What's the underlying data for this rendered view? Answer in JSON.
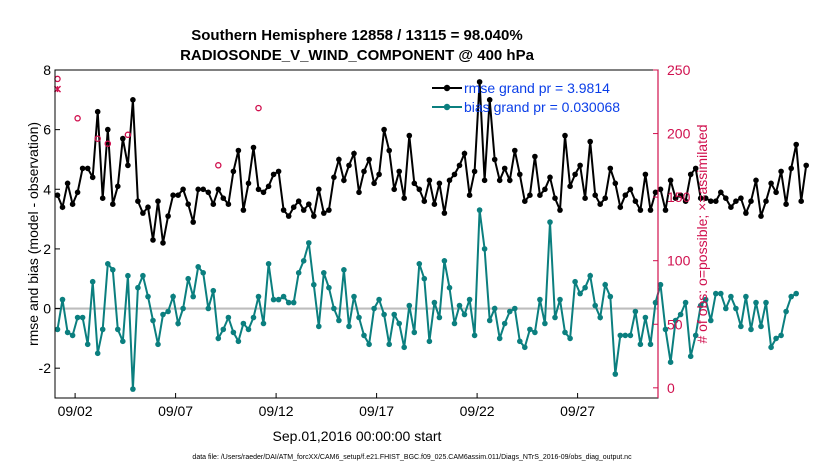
{
  "chart_data": {
    "type": "line",
    "title": [
      "Southern Hemisphere 12858 / 13115 = 98.040%",
      "RADIOSONDE_V_WIND_COMPONENT @ 400 hPa"
    ],
    "xlabel": "Sep.01,2016 00:00:00 start",
    "ylabel_left": "rmse and bias (model - observation)",
    "ylabel_right": "# of obs: o=possible; ×=assimilated",
    "ylim_left": [
      -3,
      8
    ],
    "yticks_left": [
      "-2",
      "0",
      "2",
      "4",
      "6",
      "8"
    ],
    "ylim_right": [
      -8,
      250
    ],
    "yticks_right": [
      "0",
      "50",
      "100",
      "150",
      "200",
      "250"
    ],
    "xlim_days": [
      0.5,
      30.5
    ],
    "xticks": [
      {
        "day": 1.5,
        "label": "09/02"
      },
      {
        "day": 6.5,
        "label": "09/07"
      },
      {
        "day": 11.5,
        "label": "09/12"
      },
      {
        "day": 16.5,
        "label": "09/17"
      },
      {
        "day": 21.5,
        "label": "09/22"
      },
      {
        "day": 26.5,
        "label": "09/27"
      }
    ],
    "step_days": 0.25,
    "start_day": 0.625,
    "zero_line": 0,
    "legend": [
      {
        "label": "rmse grand pr = 3.9814",
        "color": "#000000"
      },
      {
        "label": "bias grand pr = 0.030068",
        "color": "#0b7f7f"
      }
    ],
    "footer": "data file: /Users/raeder/DAI/ATM_forcXX/CAM6_setup/f.e21.FHIST_BGC.f09_025.CAM6assim.011/Diags_NTrS_2016-09/obs_diag_output.nc",
    "series": [
      {
        "name": "rmse",
        "color": "#000000",
        "values": [
          3.8,
          3.4,
          4.2,
          3.5,
          3.9,
          4.7,
          4.7,
          4.4,
          6.6,
          3.7,
          6.0,
          3.5,
          4.1,
          5.7,
          4.8,
          7.0,
          3.6,
          3.2,
          3.4,
          2.3,
          3.6,
          2.2,
          3.1,
          3.8,
          3.8,
          4.0,
          3.5,
          2.9,
          4.0,
          4.0,
          3.9,
          3.5,
          4.0,
          3.7,
          3.5,
          4.6,
          5.3,
          3.3,
          4.2,
          5.4,
          4.0,
          3.9,
          4.1,
          4.5,
          4.6,
          3.3,
          3.1,
          3.4,
          3.6,
          3.3,
          3.5,
          3.1,
          4.0,
          3.2,
          3.3,
          4.4,
          5.0,
          4.3,
          4.8,
          5.2,
          3.9,
          4.6,
          5.0,
          4.2,
          4.5,
          6.0,
          5.3,
          4.0,
          4.6,
          3.7,
          5.8,
          4.2,
          4.0,
          3.6,
          4.3,
          3.5,
          4.2,
          3.2,
          4.3,
          4.5,
          4.8,
          5.2,
          3.8,
          4.6,
          7.6,
          4.3,
          7.0,
          5.0,
          4.3,
          4.7,
          4.3,
          5.3,
          4.5,
          3.6,
          3.8,
          5.1,
          3.8,
          4.0,
          4.4,
          3.7,
          3.3,
          5.8,
          4.1,
          4.5,
          4.8,
          3.7,
          5.6,
          3.8,
          3.5,
          3.7,
          4.7,
          4.2,
          3.4,
          3.8,
          4.0,
          3.6,
          3.3,
          4.5,
          3.3,
          3.9,
          4.0,
          3.3,
          4.3,
          3.7,
          3.8,
          3.6,
          4.5,
          4.7,
          3.7,
          3.7,
          3.6,
          3.6,
          3.9,
          3.7,
          3.4,
          3.6,
          3.7,
          3.2,
          3.6,
          4.3,
          3.1,
          3.6,
          4.2,
          3.9,
          4.6,
          3.5,
          4.7,
          5.5,
          3.6,
          4.8
        ]
      },
      {
        "name": "bias",
        "color": "#0b7f7f",
        "values": [
          -0.7,
          0.3,
          -0.8,
          -0.9,
          -0.3,
          -0.3,
          -1.2,
          0.9,
          -1.5,
          -0.7,
          1.5,
          1.3,
          -0.7,
          -1.1,
          1.1,
          -2.7,
          0.7,
          1.1,
          0.4,
          -0.4,
          -1.2,
          -0.2,
          -0.1,
          0.4,
          -0.5,
          0.0,
          1.0,
          0.4,
          1.4,
          1.2,
          0.0,
          0.6,
          -1.0,
          -0.7,
          -0.3,
          -0.8,
          -1.1,
          -0.5,
          -0.7,
          -0.3,
          0.4,
          -0.5,
          1.5,
          0.3,
          0.3,
          0.4,
          0.2,
          0.2,
          1.2,
          1.6,
          2.2,
          0.8,
          -0.6,
          1.2,
          0.7,
          0.0,
          -0.4,
          1.3,
          -0.6,
          0.4,
          -0.3,
          -0.9,
          -1.2,
          0.0,
          0.3,
          -0.2,
          -1.2,
          -0.2,
          -0.5,
          -1.3,
          0.1,
          -0.8,
          1.5,
          1.0,
          -1.1,
          0.2,
          -0.3,
          1.6,
          0.7,
          -0.5,
          0.1,
          -0.2,
          0.3,
          -0.9,
          3.3,
          2.0,
          -0.4,
          0.0,
          -1.0,
          -0.5,
          -0.1,
          0.0,
          -1.1,
          -1.3,
          -0.7,
          -0.8,
          0.3,
          -0.5,
          2.9,
          -0.3,
          0.3,
          -0.8,
          -1.0,
          0.9,
          0.5,
          0.7,
          1.1,
          0.1,
          -0.3,
          0.8,
          0.4,
          -2.2,
          -0.9,
          -0.9,
          -0.9,
          -0.1,
          -1.2,
          -0.3,
          -1.2,
          0.2,
          0.8,
          -0.7,
          -1.8,
          -0.4,
          -0.2,
          0.2,
          -1.6,
          -0.9,
          0.1,
          0.3,
          -0.4,
          0.5,
          0.5,
          0.0,
          0.4,
          0.0,
          -0.6,
          0.4,
          -0.7,
          0.2,
          -0.6,
          0.2,
          -1.3,
          -1.0,
          -0.9,
          -0.1,
          0.4,
          0.5
        ]
      },
      {
        "name": "possible",
        "color": "#d0104e",
        "marker": "o",
        "values": [
          243,
          0,
          0,
          0,
          212,
          0,
          0,
          0,
          196,
          0,
          192,
          0,
          0,
          0,
          199,
          0,
          0,
          0,
          0,
          0,
          0,
          0,
          0,
          0,
          0,
          0,
          0,
          0,
          0,
          0,
          0,
          0,
          175,
          0,
          0,
          0,
          0,
          0,
          0,
          0,
          220,
          0,
          0,
          0,
          0,
          0,
          0,
          0,
          0,
          0,
          0,
          0,
          0,
          0,
          0,
          0,
          0,
          0,
          0,
          0,
          0,
          0,
          0,
          0,
          0,
          0,
          0,
          0,
          0,
          0,
          0,
          0,
          0,
          0,
          0,
          0,
          0,
          0,
          0,
          0,
          0,
          0,
          0,
          0,
          0,
          0,
          0,
          0,
          0,
          0,
          0,
          0,
          0,
          0,
          0,
          0,
          0,
          0,
          0,
          0,
          0,
          0,
          0,
          0,
          0,
          0,
          0,
          0,
          0,
          0,
          0,
          0,
          0,
          0,
          0,
          0,
          0,
          0,
          0,
          0,
          0,
          0,
          0,
          0,
          0,
          0,
          0,
          0,
          0,
          0,
          0,
          0,
          0,
          0,
          0,
          0,
          0,
          0,
          0,
          0,
          0,
          0,
          0,
          0,
          0,
          0,
          0,
          0,
          0,
          0,
          0
        ]
      },
      {
        "name": "assimilated",
        "color": "#d0104e",
        "marker": "x",
        "values": [
          235,
          0,
          0,
          0,
          0,
          0,
          0,
          0,
          0,
          0,
          0,
          0,
          0,
          0,
          0,
          0,
          0,
          0,
          0,
          0,
          0,
          0,
          0,
          0,
          0,
          0,
          0,
          0,
          0,
          0,
          0,
          0,
          0,
          0,
          0,
          0,
          0,
          0,
          0,
          0,
          0,
          0,
          0,
          0,
          0,
          0,
          0,
          0,
          0,
          0,
          0,
          0,
          0,
          0,
          0,
          0,
          0,
          0,
          0,
          0,
          0,
          0,
          0,
          0,
          0,
          0,
          0,
          0,
          0,
          0,
          0,
          0,
          0,
          0,
          0,
          0,
          0,
          0,
          0,
          0,
          0,
          0,
          0,
          0,
          0,
          0,
          0,
          0,
          0,
          0,
          0,
          0,
          0,
          0,
          0,
          0,
          0,
          0,
          0,
          0,
          0,
          0,
          0,
          0,
          0,
          0,
          0,
          0,
          0,
          0,
          0,
          0,
          0,
          0,
          0,
          0,
          0,
          0,
          0,
          0,
          0,
          0,
          0,
          0,
          0,
          0,
          0,
          0,
          0,
          0,
          0,
          0,
          0,
          0,
          0,
          0,
          0,
          0,
          0,
          0,
          0,
          0,
          0,
          0,
          0,
          0,
          0,
          0,
          0,
          0,
          0
        ]
      }
    ]
  }
}
